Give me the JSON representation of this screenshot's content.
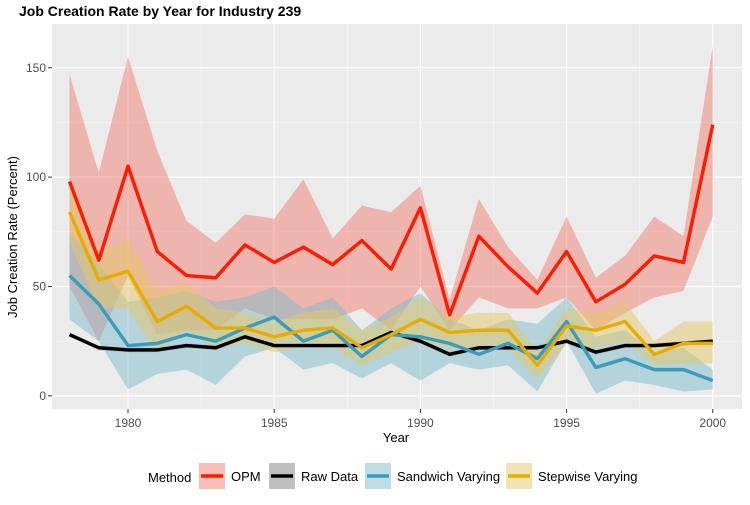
{
  "chart_data": {
    "type": "line",
    "title": "Job Creation Rate by Year for Industry 239",
    "xlabel": "Year",
    "ylabel": "Job Creation Rate (Percent)",
    "xlim": [
      1977.4,
      2001.0
    ],
    "ylim": [
      -6,
      170
    ],
    "x_ticks": [
      1980,
      1985,
      1990,
      1995,
      2000
    ],
    "y_ticks": [
      0,
      50,
      100,
      150
    ],
    "x": [
      1978,
      1979,
      1980,
      1981,
      1982,
      1983,
      1984,
      1985,
      1986,
      1987,
      1988,
      1989,
      1990,
      1991,
      1992,
      1993,
      1994,
      1995,
      1996,
      1997,
      1998,
      1999,
      2000
    ],
    "legend_title": "Method",
    "legend_position": "bottom",
    "series": [
      {
        "name": "OPM",
        "color": "#ff1a00",
        "band_color": "#f08070",
        "values": [
          98,
          62,
          105,
          66,
          55,
          54,
          69,
          61,
          68,
          60,
          71,
          58,
          86,
          37,
          73,
          59,
          47,
          66,
          43,
          51,
          64,
          61,
          124
        ],
        "lower": [
          50,
          25,
          55,
          28,
          30,
          30,
          40,
          35,
          35,
          35,
          40,
          30,
          50,
          30,
          45,
          40,
          40,
          45,
          30,
          38,
          45,
          48,
          82
        ],
        "upper": [
          147,
          102,
          155,
          112,
          80,
          70,
          83,
          81,
          99,
          72,
          87,
          84,
          96,
          44,
          90,
          68,
          53,
          82,
          54,
          64,
          82,
          73,
          160
        ]
      },
      {
        "name": "Raw Data",
        "color": "#000000",
        "band_color": "#808080",
        "values": [
          28,
          22,
          21,
          21,
          23,
          22,
          27,
          23,
          23,
          23,
          23,
          29,
          25,
          19,
          22,
          22,
          22,
          25,
          20,
          23,
          23,
          24,
          25
        ],
        "lower": [
          27,
          21,
          20,
          20,
          22,
          21,
          26,
          22,
          22,
          22,
          22,
          28,
          24,
          18,
          21,
          21,
          21,
          24,
          19,
          22,
          22,
          23,
          24
        ],
        "upper": [
          29,
          23,
          22,
          22,
          24,
          23,
          28,
          24,
          24,
          24,
          24,
          30,
          26,
          20,
          23,
          23,
          23,
          26,
          21,
          24,
          24,
          25,
          26
        ]
      },
      {
        "name": "Sandwich Varying",
        "color": "#3a9cba",
        "band_color": "#7fbccb",
        "values": [
          55,
          42,
          23,
          24,
          28,
          25,
          31,
          36,
          25,
          30,
          18,
          28,
          27,
          24,
          19,
          24,
          17,
          34,
          13,
          17,
          12,
          12,
          7
        ],
        "lower": [
          35,
          25,
          3,
          10,
          12,
          5,
          18,
          22,
          12,
          15,
          8,
          15,
          7,
          15,
          12,
          14,
          2,
          25,
          1,
          7,
          5,
          2,
          3
        ],
        "upper": [
          75,
          60,
          43,
          45,
          48,
          43,
          45,
          50,
          40,
          45,
          30,
          40,
          47,
          35,
          30,
          35,
          33,
          45,
          27,
          30,
          20,
          22,
          12
        ]
      },
      {
        "name": "Stepwise Varying",
        "color": "#e6ac00",
        "band_color": "#e6c866",
        "values": [
          84,
          53,
          57,
          34,
          41,
          31,
          31,
          27,
          30,
          31,
          22,
          28,
          35,
          29,
          30,
          30,
          14,
          32,
          30,
          34,
          19,
          24,
          24
        ],
        "lower": [
          70,
          40,
          40,
          20,
          30,
          22,
          24,
          20,
          22,
          22,
          14,
          20,
          25,
          22,
          22,
          22,
          8,
          24,
          22,
          25,
          14,
          15,
          15
        ],
        "upper": [
          100,
          66,
          72,
          48,
          52,
          40,
          38,
          34,
          38,
          40,
          30,
          36,
          45,
          36,
          38,
          38,
          20,
          40,
          38,
          43,
          25,
          34,
          34
        ]
      }
    ]
  }
}
